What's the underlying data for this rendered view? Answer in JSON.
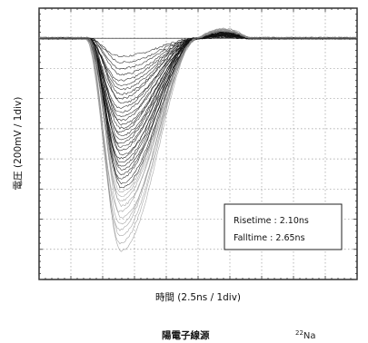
{
  "chart_data": {
    "type": "line",
    "title": "",
    "xlabel": "時間 (2.5ns / 1div)",
    "ylabel": "電圧 (200mV / 1div)",
    "x_unit": "ns",
    "y_unit": "mV",
    "x_per_div": 2.5,
    "y_per_div": 200,
    "xlim": [
      0,
      25
    ],
    "ylim": [
      -1600,
      200
    ],
    "x_divisions": 10,
    "y_divisions": 9,
    "grid": true,
    "legend": "bottom-right",
    "annotations": [
      "Risetime : 2.10ns",
      "Falltime : 2.65ns"
    ],
    "pulse_shape": {
      "baseline_mv": 0,
      "pulse_start_ns": 3.8,
      "peak_time_ns": 6.4,
      "recovery_end_ns": 12.5,
      "risetime_ns": 2.1,
      "falltime_ns": 2.65
    },
    "series_amplitudes_mv": [
      -120,
      -160,
      -200,
      -240,
      -280,
      -310,
      -340,
      -370,
      -400,
      -430,
      -460,
      -490,
      -520,
      -545,
      -570,
      -595,
      -620,
      -645,
      -670,
      -695,
      -720,
      -745,
      -770,
      -795,
      -820,
      -845,
      -870,
      -900,
      -930,
      -960,
      -990,
      -1020,
      -1050,
      -1080,
      -1110,
      -1150,
      -1190,
      -1230,
      -1270,
      -1310,
      -1360,
      -1410
    ]
  },
  "caption": {
    "text": "陽電子線源",
    "source_sup": "22",
    "source_element": "Na"
  },
  "colors": {
    "trace_dense": "#111111",
    "trace_sparse": "#8a8a8a"
  }
}
